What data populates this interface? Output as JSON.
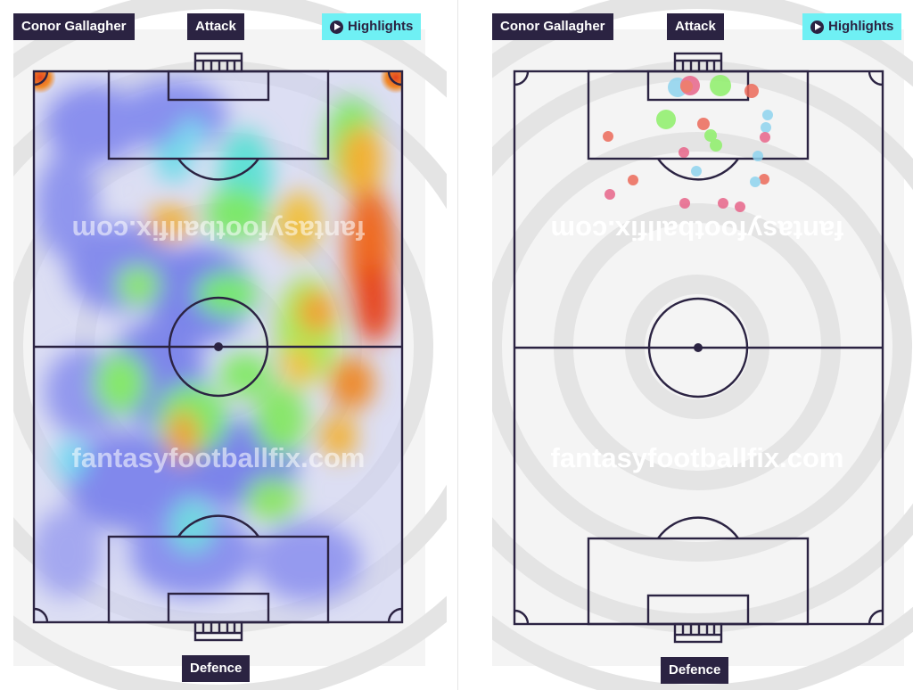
{
  "player_name": "Conor Gallagher",
  "labels": {
    "attack": "Attack",
    "defence": "Defence",
    "highlights": "Highlights"
  },
  "watermark": "fantasyfootballfix.com",
  "icons": {
    "play": "play-circle-icon"
  },
  "colors": {
    "tag_bg": "#2b2342",
    "tag_text": "#ffffff",
    "highlights_bg": "#6ff0f4",
    "pitch_lines": "#2b2342",
    "shot_red": "#ec6a5a",
    "shot_pink": "#e8658a",
    "shot_green": "#8ff06a",
    "shot_blue": "#8fd4ef"
  }
}
